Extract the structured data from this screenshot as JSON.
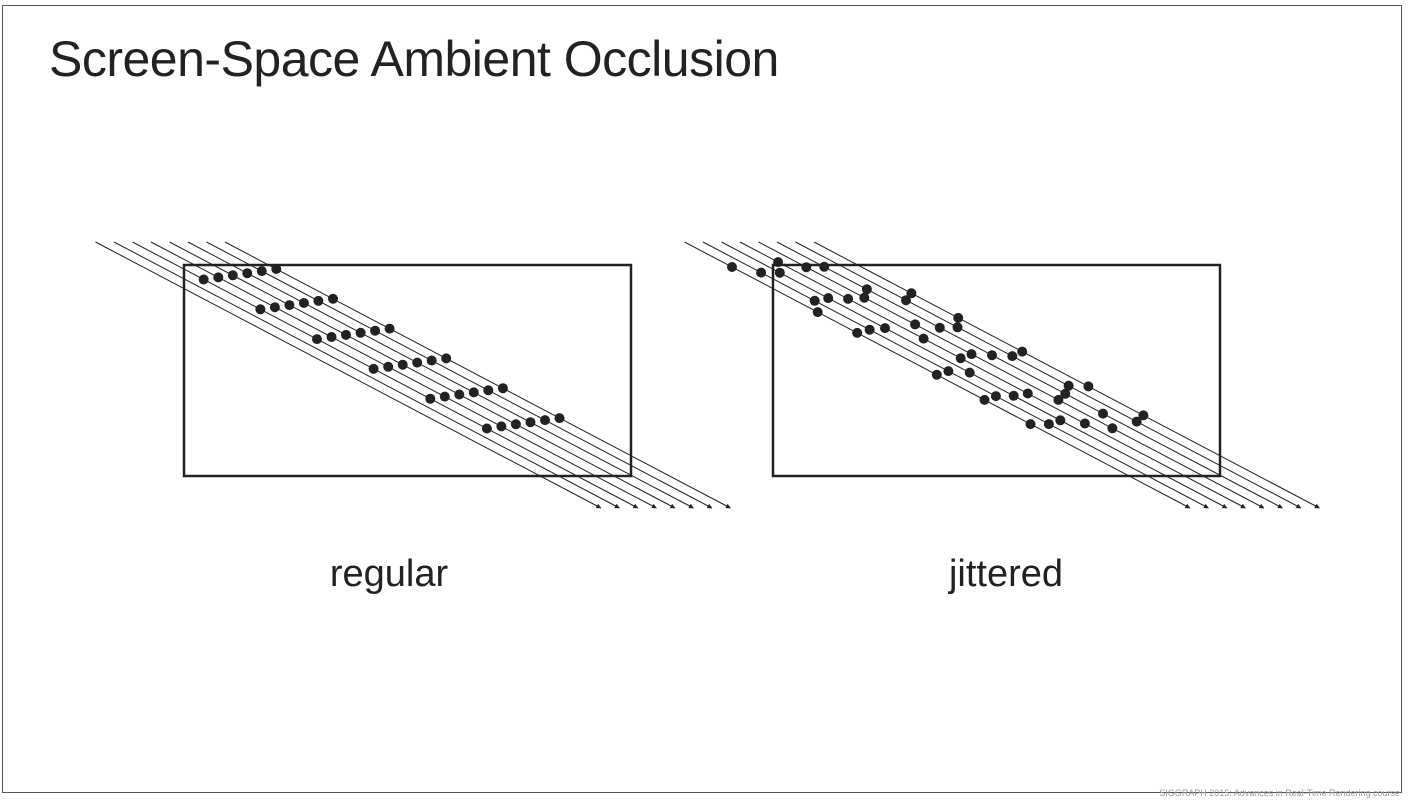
{
  "title": "Screen-Space Ambient Occlusion",
  "panels": {
    "regular": {
      "caption": "regular"
    },
    "jittered": {
      "caption": "jittered"
    }
  },
  "footer": "SIGGRAPH 2015: Advances in Real-Time Rendering course",
  "colors": {
    "text": "#222222",
    "lines": "#222222",
    "footer": "#9a9a9a"
  }
}
